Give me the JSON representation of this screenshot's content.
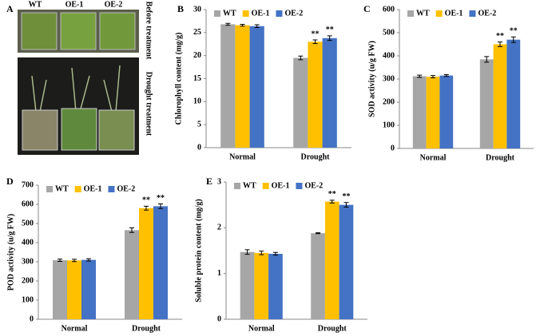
{
  "photo_panel": {
    "panel_label": "A",
    "columns": [
      "WT",
      "OE-1",
      "OE-2"
    ],
    "rows": [
      "Before treatment",
      "Drought treatment"
    ]
  },
  "chart_data": [
    {
      "type": "bar",
      "panel_label": "B",
      "ylabel": "Chlorophyll content (mg/g)",
      "categories": [
        "Normal",
        "Drought"
      ],
      "series": [
        {
          "name": "WT",
          "color": "#a6a6a6",
          "values": [
            26.8,
            19.5
          ],
          "errors": [
            0.2,
            0.4
          ],
          "significance": [
            null,
            null
          ]
        },
        {
          "name": "OE-1",
          "color": "#ffc000",
          "values": [
            26.6,
            23.0
          ],
          "errors": [
            0.2,
            0.4
          ],
          "significance": [
            null,
            "**"
          ]
        },
        {
          "name": "OE-2",
          "color": "#4472c4",
          "values": [
            26.4,
            23.8
          ],
          "errors": [
            0.3,
            0.5
          ],
          "significance": [
            null,
            "**"
          ]
        }
      ],
      "ylim": [
        0,
        30
      ],
      "yticks": [
        0,
        5,
        10,
        15,
        20,
        25,
        30
      ]
    },
    {
      "type": "bar",
      "panel_label": "C",
      "ylabel": "SOD activity (u/g FW)",
      "categories": [
        "Normal",
        "Drought"
      ],
      "series": [
        {
          "name": "WT",
          "color": "#a6a6a6",
          "values": [
            312,
            385
          ],
          "errors": [
            5,
            12
          ],
          "significance": [
            null,
            null
          ]
        },
        {
          "name": "OE-1",
          "color": "#ffc000",
          "values": [
            310,
            450
          ],
          "errors": [
            5,
            10
          ],
          "significance": [
            null,
            "**"
          ]
        },
        {
          "name": "OE-2",
          "color": "#4472c4",
          "values": [
            315,
            470
          ],
          "errors": [
            4,
            12
          ],
          "significance": [
            null,
            "**"
          ]
        }
      ],
      "ylim": [
        0,
        600
      ],
      "yticks": [
        0,
        100,
        200,
        300,
        400,
        500,
        600
      ]
    },
    {
      "type": "bar",
      "panel_label": "D",
      "ylabel": "POD activity  (u/g FW)",
      "categories": [
        "Normal",
        "Drought"
      ],
      "series": [
        {
          "name": "WT",
          "color": "#a6a6a6",
          "values": [
            308,
            465
          ],
          "errors": [
            6,
            12
          ],
          "significance": [
            null,
            null
          ]
        },
        {
          "name": "OE-1",
          "color": "#ffc000",
          "values": [
            307,
            580
          ],
          "errors": [
            6,
            10
          ],
          "significance": [
            null,
            "**"
          ]
        },
        {
          "name": "OE-2",
          "color": "#4472c4",
          "values": [
            310,
            590
          ],
          "errors": [
            6,
            12
          ],
          "significance": [
            null,
            "**"
          ]
        }
      ],
      "ylim": [
        0,
        700
      ],
      "yticks": [
        0,
        100,
        200,
        300,
        400,
        500,
        600,
        700
      ]
    },
    {
      "type": "bar",
      "panel_label": "E",
      "ylabel": "Soluble protein content (mg/g)",
      "categories": [
        "Normal",
        "Drought"
      ],
      "series": [
        {
          "name": "WT",
          "color": "#a6a6a6",
          "values": [
            1.47,
            1.88
          ],
          "errors": [
            0.05,
            0.01
          ],
          "significance": [
            null,
            null
          ]
        },
        {
          "name": "OE-1",
          "color": "#ffc000",
          "values": [
            1.45,
            2.57
          ],
          "errors": [
            0.04,
            0.03
          ],
          "significance": [
            null,
            "**"
          ]
        },
        {
          "name": "OE-2",
          "color": "#4472c4",
          "values": [
            1.43,
            2.5
          ],
          "errors": [
            0.03,
            0.05
          ],
          "significance": [
            null,
            "**"
          ]
        }
      ],
      "ylim": [
        0,
        3
      ],
      "yticks": [
        0,
        1,
        2,
        3
      ]
    }
  ]
}
